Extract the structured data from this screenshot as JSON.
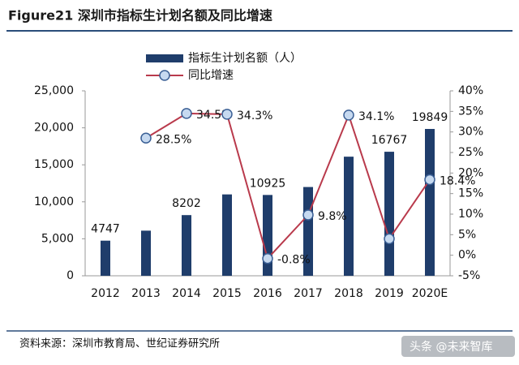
{
  "chart_data": {
    "type": "bar-line",
    "title": "Figure21 深圳市指标生计划名额及同比增速",
    "source": "资料来源：深圳市教育局、世纪证券研究所",
    "watermark": "头条 @未来智库",
    "categories": [
      "2012",
      "2013",
      "2014",
      "2015",
      "2016",
      "2017",
      "2018",
      "2019",
      "2020E"
    ],
    "series": [
      {
        "name": "指标生计划名额（人）",
        "type": "bar",
        "color": "#1f3d6b",
        "values": [
          4747,
          6100,
          8202,
          11000,
          10925,
          12000,
          16100,
          16767,
          19849
        ],
        "value_labels": [
          "4747",
          null,
          "8202",
          null,
          "10925",
          null,
          null,
          "16767",
          "19849"
        ]
      },
      {
        "name": "同比增速",
        "type": "line",
        "axis": "y2",
        "color": "#b93a4c",
        "marker_color": "#c6d9f0",
        "values": [
          null,
          28.5,
          34.5,
          34.3,
          -0.8,
          9.8,
          34.1,
          4.0,
          18.4
        ],
        "value_labels": [
          null,
          "28.5%",
          "34.5%",
          "34.3%",
          "-0.8%",
          "9.8%",
          "34.1%",
          null,
          "18.4%"
        ]
      }
    ],
    "ylim": [
      0,
      25000
    ],
    "yticks": [
      0,
      {
        "value": 5000,
        "label": "5,000"
      },
      {
        "value": 10000,
        "label": "10,000"
      },
      {
        "value": 15000,
        "label": "15,000"
      },
      {
        "value": 20000,
        "label": "20,000"
      },
      {
        "value": 25000,
        "label": "25,000"
      }
    ],
    "y2lim": [
      -5,
      40
    ],
    "y2ticks": [
      {
        "value": -5,
        "label": "-5%"
      },
      {
        "value": 0,
        "label": "0%"
      },
      {
        "value": 5,
        "label": "5%"
      },
      {
        "value": 10,
        "label": "10%"
      },
      {
        "value": 15,
        "label": "15%"
      },
      {
        "value": 20,
        "label": "20%"
      },
      {
        "value": 25,
        "label": "25%"
      },
      {
        "value": 30,
        "label": "30%"
      },
      {
        "value": 35,
        "label": "35%"
      },
      {
        "value": 40,
        "label": "40%"
      }
    ]
  }
}
